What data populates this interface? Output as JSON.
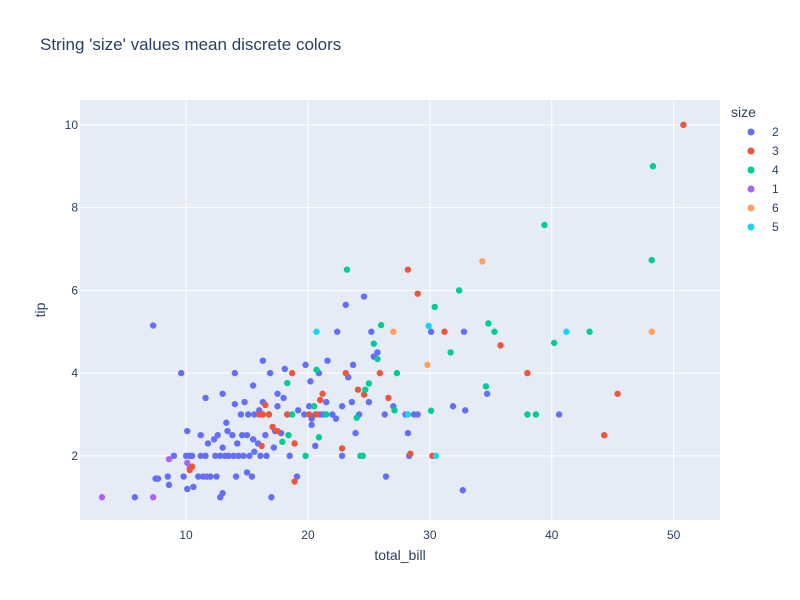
{
  "chart_data": {
    "type": "scatter",
    "title": "String 'size' values mean discrete colors",
    "xlabel": "total_bill",
    "ylabel": "tip",
    "xlim": [
      1.3,
      53.8
    ],
    "ylim": [
      0.45,
      10.6
    ],
    "xticks": [
      10,
      20,
      30,
      40,
      50
    ],
    "yticks": [
      2,
      4,
      6,
      8,
      10
    ],
    "grid": true,
    "legend": {
      "title": "size",
      "placement": "right"
    },
    "plot_bg": "#e5ecf6",
    "series": [
      {
        "name": "2",
        "color": "#636efa",
        "points": [
          [
            7.3,
            5.15
          ],
          [
            9.6,
            4.0
          ],
          [
            5.8,
            1.0
          ],
          [
            7.5,
            1.45
          ],
          [
            7.7,
            1.45
          ],
          [
            8.5,
            1.5
          ],
          [
            8.6,
            1.3
          ],
          [
            9.8,
            1.5
          ],
          [
            10.1,
            1.2
          ],
          [
            10.3,
            1.7
          ],
          [
            10.3,
            2.0
          ],
          [
            10.6,
            1.25
          ],
          [
            11.0,
            1.5
          ],
          [
            11.4,
            1.5
          ],
          [
            11.7,
            1.5
          ],
          [
            12.0,
            1.5
          ],
          [
            12.5,
            1.5
          ],
          [
            12.8,
            1.0
          ],
          [
            13.0,
            1.1
          ],
          [
            14.1,
            1.5
          ],
          [
            15.0,
            1.6
          ],
          [
            15.4,
            1.5
          ],
          [
            17.0,
            1.0
          ],
          [
            19.1,
            1.5
          ],
          [
            9.0,
            2.0
          ],
          [
            10.0,
            2.0
          ],
          [
            10.5,
            2.0
          ],
          [
            11.2,
            2.0
          ],
          [
            11.6,
            2.0
          ],
          [
            12.4,
            2.0
          ],
          [
            12.8,
            2.0
          ],
          [
            13.2,
            2.0
          ],
          [
            13.5,
            2.0
          ],
          [
            13.9,
            2.0
          ],
          [
            14.3,
            2.0
          ],
          [
            14.7,
            2.0
          ],
          [
            15.2,
            2.0
          ],
          [
            15.6,
            2.1
          ],
          [
            16.1,
            2.0
          ],
          [
            16.6,
            2.0
          ],
          [
            17.2,
            2.2
          ],
          [
            18.5,
            2.0
          ],
          [
            10.1,
            2.6
          ],
          [
            11.2,
            2.5
          ],
          [
            11.8,
            2.3
          ],
          [
            12.3,
            2.4
          ],
          [
            12.6,
            2.5
          ],
          [
            13.0,
            2.2
          ],
          [
            13.4,
            2.6
          ],
          [
            13.8,
            2.5
          ],
          [
            14.2,
            2.3
          ],
          [
            14.6,
            2.5
          ],
          [
            15.0,
            2.5
          ],
          [
            15.5,
            2.4
          ],
          [
            15.9,
            2.3
          ],
          [
            16.5,
            2.5
          ],
          [
            17.3,
            2.6
          ],
          [
            13.3,
            2.8
          ],
          [
            13.0,
            3.5
          ],
          [
            14.5,
            3.0
          ],
          [
            14.8,
            3.3
          ],
          [
            15.1,
            3.0
          ],
          [
            15.6,
            3.0
          ],
          [
            16.0,
            3.1
          ],
          [
            16.3,
            3.3
          ],
          [
            16.8,
            3.0
          ],
          [
            17.5,
            3.2
          ],
          [
            18.0,
            3.4
          ],
          [
            18.3,
            3.0
          ],
          [
            19.2,
            3.1
          ],
          [
            19.7,
            3.0
          ],
          [
            20.1,
            3.2
          ],
          [
            20.6,
            3.0
          ],
          [
            21.0,
            3.0
          ],
          [
            21.5,
            3.3
          ],
          [
            22.0,
            3.0
          ],
          [
            22.3,
            2.9
          ],
          [
            22.8,
            3.2
          ],
          [
            23.6,
            3.3
          ],
          [
            24.2,
            3.0
          ],
          [
            25.0,
            3.3
          ],
          [
            26.3,
            3.0
          ],
          [
            27.0,
            3.2
          ],
          [
            28.0,
            3.0
          ],
          [
            28.7,
            3.0
          ],
          [
            31.9,
            3.2
          ],
          [
            32.9,
            3.1
          ],
          [
            34.7,
            3.5
          ],
          [
            40.6,
            3.0
          ],
          [
            11.6,
            3.4
          ],
          [
            14.0,
            3.25
          ],
          [
            16.3,
            4.3
          ],
          [
            16.9,
            4.0
          ],
          [
            17.5,
            3.5
          ],
          [
            18.1,
            4.1
          ],
          [
            19.8,
            4.2
          ],
          [
            20.2,
            3.8
          ],
          [
            20.9,
            4.0
          ],
          [
            21.6,
            4.3
          ],
          [
            23.3,
            3.9
          ],
          [
            23.7,
            4.2
          ],
          [
            25.4,
            4.4
          ],
          [
            25.7,
            4.5
          ],
          [
            14.0,
            4.0
          ],
          [
            15.5,
            3.7
          ],
          [
            22.4,
            5.0
          ],
          [
            23.1,
            5.65
          ],
          [
            24.6,
            5.85
          ],
          [
            25.2,
            5.0
          ],
          [
            30.1,
            5.0
          ],
          [
            32.8,
            5.0
          ],
          [
            32.7,
            1.17
          ],
          [
            20.6,
            2.24
          ],
          [
            21.3,
            3.0
          ],
          [
            22.8,
            2.0
          ],
          [
            23.9,
            2.55
          ],
          [
            26.4,
            1.5
          ],
          [
            28.2,
            2.55
          ],
          [
            28.3,
            2.0
          ],
          [
            29.0,
            3.0
          ],
          [
            20.3,
            2.75
          ],
          [
            20.3,
            2.9
          ],
          [
            17.8,
            2.55
          ]
        ]
      },
      {
        "name": "3",
        "color": "#ef553b",
        "points": [
          [
            10.3,
            1.66
          ],
          [
            10.5,
            1.74
          ],
          [
            16.0,
            3.0
          ],
          [
            16.2,
            2.24
          ],
          [
            16.3,
            3.0
          ],
          [
            16.8,
            3.0
          ],
          [
            17.1,
            2.7
          ],
          [
            17.5,
            2.6
          ],
          [
            18.3,
            3.0
          ],
          [
            18.7,
            4.0
          ],
          [
            18.9,
            2.3
          ],
          [
            18.9,
            1.38
          ],
          [
            20.1,
            3.0
          ],
          [
            20.7,
            3.0
          ],
          [
            21.0,
            3.35
          ],
          [
            21.2,
            3.5
          ],
          [
            23.1,
            4.0
          ],
          [
            24.1,
            3.6
          ],
          [
            24.6,
            3.48
          ],
          [
            25.9,
            4.0
          ],
          [
            26.6,
            3.4
          ],
          [
            28.4,
            2.05
          ],
          [
            29.0,
            5.92
          ],
          [
            31.2,
            5.0
          ],
          [
            35.8,
            4.67
          ],
          [
            38.0,
            4.0
          ],
          [
            44.3,
            2.5
          ],
          [
            45.4,
            3.5
          ],
          [
            28.2,
            6.5
          ],
          [
            50.8,
            10.0
          ],
          [
            16.5,
            3.23
          ],
          [
            22.8,
            2.18
          ],
          [
            30.2,
            2.0
          ]
        ]
      },
      {
        "name": "4",
        "color": "#00cc96",
        "points": [
          [
            18.3,
            3.76
          ],
          [
            18.4,
            2.5
          ],
          [
            18.7,
            3.0
          ],
          [
            19.8,
            2.0
          ],
          [
            20.7,
            4.08
          ],
          [
            20.9,
            2.45
          ],
          [
            20.5,
            3.2
          ],
          [
            21.5,
            3.0
          ],
          [
            24.0,
            2.92
          ],
          [
            24.3,
            2.0
          ],
          [
            24.5,
            2.0
          ],
          [
            24.7,
            3.6
          ],
          [
            25.0,
            3.75
          ],
          [
            25.4,
            4.71
          ],
          [
            25.7,
            4.34
          ],
          [
            26.0,
            5.16
          ],
          [
            27.1,
            3.1
          ],
          [
            27.3,
            4.0
          ],
          [
            30.1,
            3.09
          ],
          [
            30.4,
            5.6
          ],
          [
            31.7,
            4.5
          ],
          [
            32.4,
            6.0
          ],
          [
            34.6,
            3.68
          ],
          [
            34.8,
            5.2
          ],
          [
            35.3,
            5.0
          ],
          [
            38.0,
            3.0
          ],
          [
            38.7,
            3.0
          ],
          [
            39.4,
            7.58
          ],
          [
            40.2,
            4.73
          ],
          [
            43.1,
            5.0
          ],
          [
            48.2,
            6.73
          ],
          [
            48.3,
            9.0
          ],
          [
            23.2,
            6.5
          ],
          [
            17.9,
            2.34
          ]
        ]
      },
      {
        "name": "1",
        "color": "#ab63fa",
        "points": [
          [
            3.1,
            1.0
          ],
          [
            7.3,
            1.0
          ],
          [
            8.6,
            1.92
          ],
          [
            10.1,
            1.83
          ]
        ]
      },
      {
        "name": "6",
        "color": "#ffa15a",
        "points": [
          [
            27.0,
            5.0
          ],
          [
            29.8,
            4.2
          ],
          [
            34.3,
            6.7
          ],
          [
            48.2,
            5.0
          ]
        ]
      },
      {
        "name": "5",
        "color": "#19d3f3",
        "points": [
          [
            20.7,
            5.0
          ],
          [
            28.2,
            3.0
          ],
          [
            29.9,
            5.14
          ],
          [
            30.5,
            2.0
          ],
          [
            41.2,
            5.0
          ]
        ]
      }
    ]
  }
}
